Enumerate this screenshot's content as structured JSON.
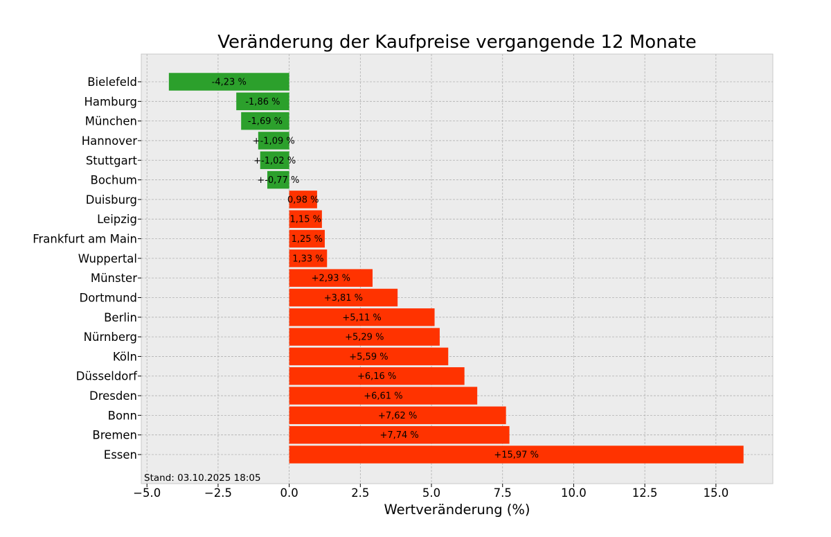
{
  "chart_data": {
    "type": "bar",
    "orientation": "horizontal",
    "title": "Veränderung der Kaufpreise vergangende 12 Monate",
    "xlabel": "Wertveränderung (%)",
    "ylabel": "",
    "xlim": [
      -5.2,
      17.0
    ],
    "xticks": [
      -5.0,
      -2.5,
      0.0,
      2.5,
      5.0,
      7.5,
      10.0,
      12.5,
      15.0
    ],
    "xtick_labels": [
      "−5.0",
      "−2.5",
      "0.0",
      "2.5",
      "5.0",
      "7.5",
      "10.0",
      "12.5",
      "15.0"
    ],
    "grid": true,
    "annotation": "Stand: 03.10.2025 18:05",
    "colors": {
      "negative": "#2ca02c",
      "positive": "#ff3300",
      "background": "#ececec",
      "grid": "#b0b0b0"
    },
    "categories": [
      "Bielefeld",
      "Hamburg",
      "München",
      "Hannover",
      "Stuttgart",
      "Bochum",
      "Duisburg",
      "Leipzig",
      "Frankfurt am Main",
      "Wuppertal",
      "Münster",
      "Dortmund",
      "Berlin",
      "Nürnberg",
      "Köln",
      "Düsseldorf",
      "Dresden",
      "Bonn",
      "Bremen",
      "Essen"
    ],
    "values": [
      -4.23,
      -1.86,
      -1.69,
      -1.09,
      -1.02,
      -0.77,
      0.98,
      1.15,
      1.25,
      1.33,
      2.93,
      3.81,
      5.11,
      5.29,
      5.59,
      6.16,
      6.61,
      7.62,
      7.74,
      15.97
    ],
    "value_labels": [
      "-4,23 %",
      "-1,86 %",
      "-1,69 %",
      "+-1,09 %",
      "+-1,02 %",
      "+-0,77 %",
      "0,98 %",
      "1,15 %",
      "1,25 %",
      "1,33 %",
      "+2,93 %",
      "+3,81 %",
      "+5,11 %",
      "+5,29 %",
      "+5,59 %",
      "+6,16 %",
      "+6,61 %",
      "+7,62 %",
      "+7,74 %",
      "+15,97 %"
    ]
  }
}
